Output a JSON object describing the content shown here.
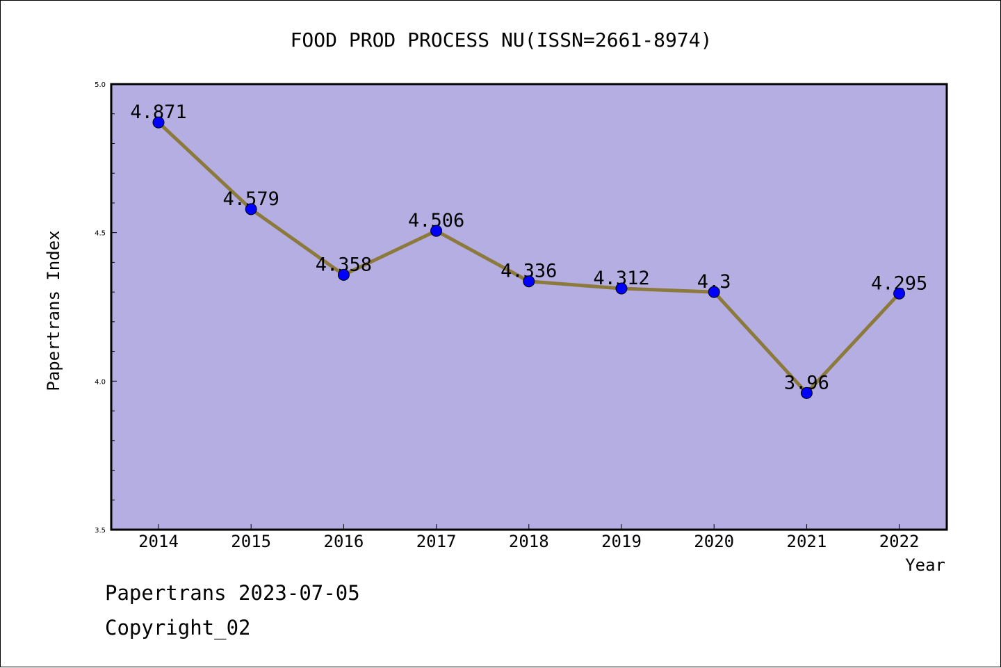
{
  "chart_data": {
    "type": "line",
    "title": "FOOD PROD PROCESS NU(ISSN=2661-8974)",
    "xlabel": "Year",
    "ylabel": "Papertrans Index",
    "categories": [
      "2014",
      "2015",
      "2016",
      "2017",
      "2018",
      "2019",
      "2020",
      "2021",
      "2022"
    ],
    "series": [
      {
        "values": [
          4.871,
          4.579,
          4.358,
          4.506,
          4.336,
          4.312,
          4.3,
          3.96,
          4.295
        ],
        "labels": [
          "4.871",
          "4.579",
          "4.358",
          "4.506",
          "4.336",
          "4.312",
          "4.3",
          "3.96",
          "4.295"
        ]
      }
    ],
    "ylim": [
      3.5,
      5.0
    ],
    "yticks": [
      "3.5",
      "4.0",
      "4.5",
      "5.0"
    ],
    "grid": false,
    "colors": {
      "plot_background": "#b5aee2",
      "line": "#8c7a3c",
      "marker": "#0000ff"
    }
  },
  "footer": {
    "line1": "Papertrans 2023-07-05",
    "line2": "Copyright_02"
  }
}
